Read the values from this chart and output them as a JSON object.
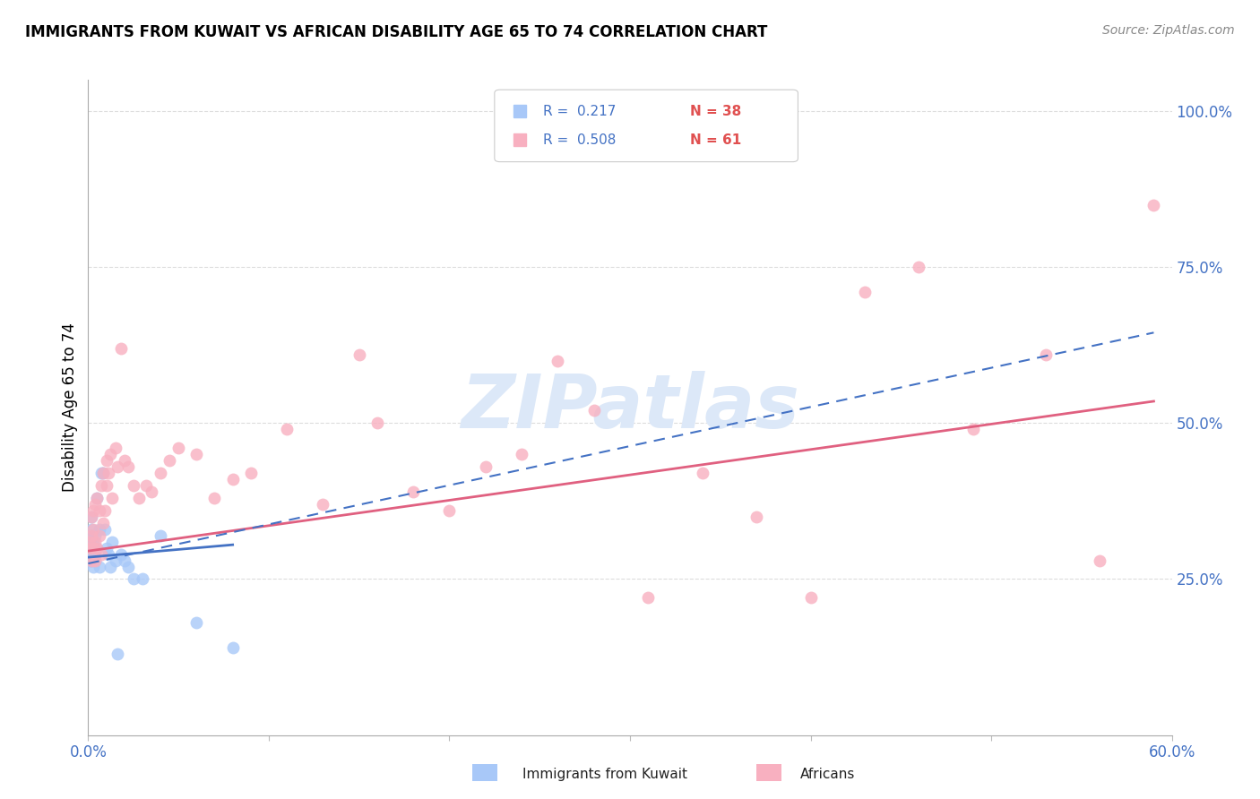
{
  "title": "IMMIGRANTS FROM KUWAIT VS AFRICAN DISABILITY AGE 65 TO 74 CORRELATION CHART",
  "source": "Source: ZipAtlas.com",
  "ylabel": "Disability Age 65 to 74",
  "x_min": 0.0,
  "x_max": 0.6,
  "y_min": 0.0,
  "y_max": 1.05,
  "color_kuwait": "#a8c8f8",
  "color_africans": "#f8b0c0",
  "color_line_kuwait": "#4472c4",
  "color_line_africans": "#e06080",
  "color_axis_labels": "#4472c4",
  "color_grid": "#dddddd",
  "watermark_text": "ZIPatlas",
  "watermark_color": "#dce8f8",
  "legend_r1": "R =  0.217",
  "legend_n1": "N = 38",
  "legend_r2": "R =  0.508",
  "legend_n2": "N = 61",
  "legend_color_r": "#4472c4",
  "legend_color_n": "#e05050",
  "kuwait_scatter_x": [
    0.001,
    0.001,
    0.001,
    0.001,
    0.001,
    0.002,
    0.002,
    0.002,
    0.002,
    0.002,
    0.003,
    0.003,
    0.003,
    0.003,
    0.004,
    0.004,
    0.004,
    0.005,
    0.005,
    0.006,
    0.006,
    0.007,
    0.008,
    0.009,
    0.01,
    0.011,
    0.012,
    0.013,
    0.015,
    0.016,
    0.018,
    0.02,
    0.022,
    0.025,
    0.03,
    0.04,
    0.06,
    0.08
  ],
  "kuwait_scatter_y": [
    0.28,
    0.3,
    0.32,
    0.29,
    0.31,
    0.3,
    0.28,
    0.32,
    0.33,
    0.35,
    0.29,
    0.31,
    0.27,
    0.3,
    0.29,
    0.32,
    0.28,
    0.3,
    0.38,
    0.33,
    0.27,
    0.42,
    0.42,
    0.33,
    0.3,
    0.29,
    0.27,
    0.31,
    0.28,
    0.13,
    0.29,
    0.28,
    0.27,
    0.25,
    0.25,
    0.32,
    0.18,
    0.14
  ],
  "africans_scatter_x": [
    0.001,
    0.001,
    0.002,
    0.002,
    0.002,
    0.003,
    0.003,
    0.003,
    0.004,
    0.004,
    0.004,
    0.005,
    0.005,
    0.006,
    0.006,
    0.007,
    0.007,
    0.008,
    0.008,
    0.009,
    0.01,
    0.01,
    0.011,
    0.012,
    0.013,
    0.015,
    0.016,
    0.018,
    0.02,
    0.022,
    0.025,
    0.028,
    0.032,
    0.035,
    0.04,
    0.045,
    0.05,
    0.06,
    0.07,
    0.08,
    0.09,
    0.11,
    0.13,
    0.15,
    0.16,
    0.18,
    0.2,
    0.22,
    0.24,
    0.26,
    0.28,
    0.31,
    0.34,
    0.37,
    0.4,
    0.43,
    0.46,
    0.49,
    0.53,
    0.56,
    0.59
  ],
  "africans_scatter_y": [
    0.3,
    0.31,
    0.28,
    0.32,
    0.35,
    0.3,
    0.33,
    0.36,
    0.28,
    0.31,
    0.37,
    0.3,
    0.38,
    0.32,
    0.36,
    0.29,
    0.4,
    0.34,
    0.42,
    0.36,
    0.4,
    0.44,
    0.42,
    0.45,
    0.38,
    0.46,
    0.43,
    0.62,
    0.44,
    0.43,
    0.4,
    0.38,
    0.4,
    0.39,
    0.42,
    0.44,
    0.46,
    0.45,
    0.38,
    0.41,
    0.42,
    0.49,
    0.37,
    0.61,
    0.5,
    0.39,
    0.36,
    0.43,
    0.45,
    0.6,
    0.52,
    0.22,
    0.42,
    0.35,
    0.22,
    0.71,
    0.75,
    0.49,
    0.61,
    0.28,
    0.85
  ],
  "kuwait_trendline_x": [
    0.0,
    0.08
  ],
  "kuwait_trendline_y": [
    0.285,
    0.305
  ],
  "africans_trendline_x": [
    0.0,
    0.59
  ],
  "africans_trendline_y": [
    0.295,
    0.535
  ],
  "dashed_trendline_x": [
    0.0,
    0.59
  ],
  "dashed_trendline_y": [
    0.275,
    0.645
  ]
}
